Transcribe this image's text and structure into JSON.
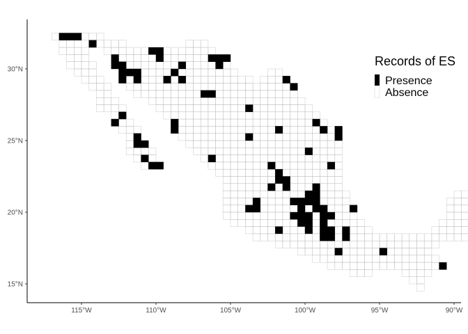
{
  "map": {
    "type": "choropleth-grid",
    "region": "Mexico",
    "x_axis": {
      "unit": "longitude",
      "ticks": [
        "115°W",
        "110°W",
        "105°W",
        "100°W",
        "95°W",
        "90°W"
      ],
      "values": [
        -115,
        -110,
        -105,
        -100,
        -95,
        -90
      ],
      "range": [
        -118.5,
        -86
      ]
    },
    "y_axis": {
      "unit": "latitude",
      "ticks": [
        "15°N",
        "20°N",
        "25°N",
        "30°N"
      ],
      "values": [
        15,
        20,
        25,
        30
      ],
      "range": [
        13.5,
        33.2
      ]
    },
    "grid": false,
    "cell_size_deg": 0.5,
    "legend": {
      "title": "Records of ES",
      "placement": "top-right",
      "items": [
        {
          "label": "Presence",
          "color": "#000000"
        },
        {
          "label": "Absence",
          "color": "#ffffff"
        }
      ]
    },
    "colors": {
      "presence": "#000000",
      "absence": "#ffffff",
      "cell_border": "#b3b3b3",
      "axis": "#000000"
    }
  }
}
